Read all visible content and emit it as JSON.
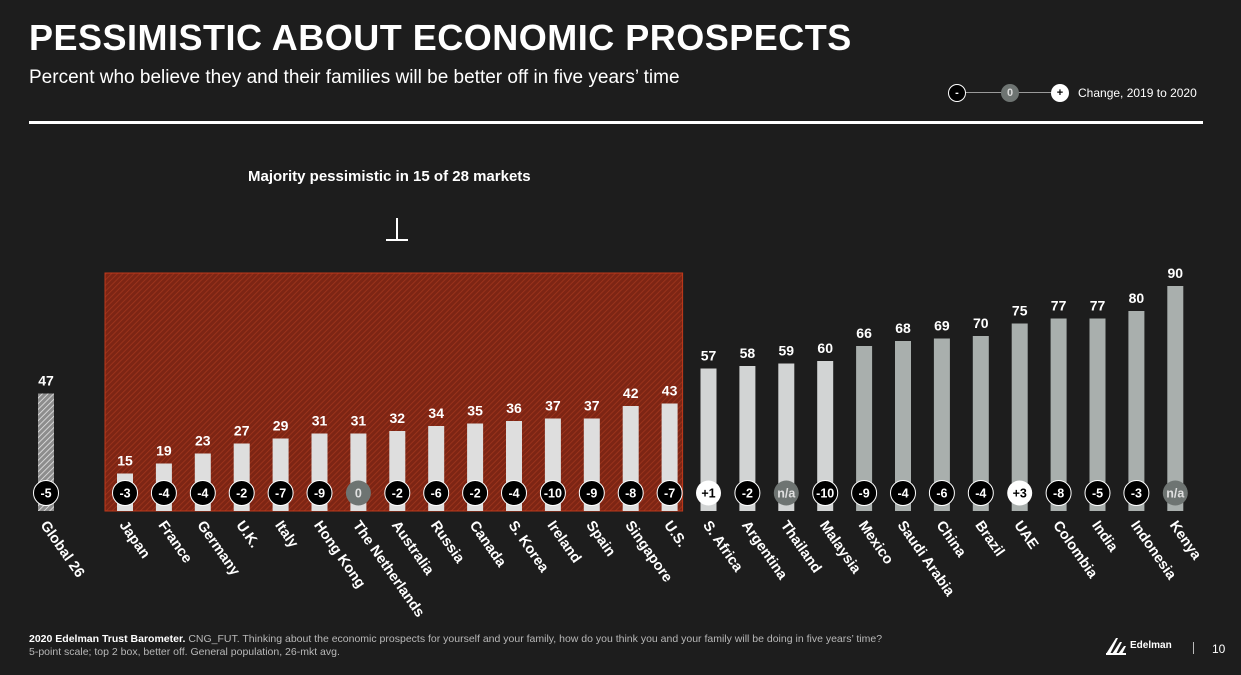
{
  "header": {
    "title": "PESSIMISTIC ABOUT ECONOMIC PROSPECTS",
    "subtitle": "Percent who believe they and their families will be better off in five years’ time"
  },
  "legend": {
    "negative_symbol": "-",
    "zero_symbol": "0",
    "positive_symbol": "+",
    "label": "Change, 2019 to 2020"
  },
  "annotation": "Majority pessimistic in 15 of 28 markets",
  "chart_data": {
    "type": "bar",
    "categories": [
      "Global 26",
      "Japan",
      "France",
      "Germany",
      "U.K.",
      "Italy",
      "Hong Kong",
      "The Netherlands",
      "Australia",
      "Russia",
      "Canada",
      "S. Korea",
      "Ireland",
      "Spain",
      "Singapore",
      "U.S.",
      "S. Africa",
      "Argentina",
      "Thailand",
      "Malaysia",
      "Mexico",
      "Saudi Arabia",
      "China",
      "Brazil",
      "UAE",
      "Colombia",
      "India",
      "Indonesia",
      "Kenya"
    ],
    "values": [
      47,
      15,
      19,
      23,
      27,
      29,
      31,
      31,
      32,
      34,
      35,
      36,
      37,
      37,
      42,
      43,
      57,
      58,
      59,
      60,
      66,
      68,
      69,
      70,
      75,
      77,
      77,
      80,
      90
    ],
    "changes": [
      "-5",
      "-3",
      "-4",
      "-4",
      "-2",
      "-7",
      "-9",
      "0",
      "-2",
      "-6",
      "-2",
      "-4",
      "-10",
      "-9",
      "-8",
      "-7",
      "+1",
      "-2",
      "n/a",
      "-10",
      "-9",
      "-4",
      "-6",
      "-4",
      "+3",
      "-8",
      "-5",
      "-3",
      "n/a"
    ],
    "ylim": [
      0,
      100
    ],
    "pessimistic_range": {
      "from": "Japan",
      "to": "U.S."
    },
    "colors": {
      "global_bar": "#cfcfcf",
      "pessimistic_bar": "#dedede",
      "middle_bar": "#d2d4d4",
      "optimistic_bar": "#a9afad",
      "highlight_fill": "#8a2a16",
      "highlight_border": "#c0391b",
      "negative_badge": "#000000",
      "positive_badge": "#ffffff",
      "neutral_badge": "#6e7472"
    }
  },
  "footer": {
    "source_bold": "2020 Edelman Trust Barometer.",
    "source_text": " CNG_FUT. Thinking about the economic prospects for yourself and your family, how do you think you and your family will be doing in five years’ time?",
    "note": "5-point scale; top 2 box, better off. General population, 26-mkt avg."
  },
  "logo": {
    "brand": "Edelman"
  },
  "page_number": "10"
}
